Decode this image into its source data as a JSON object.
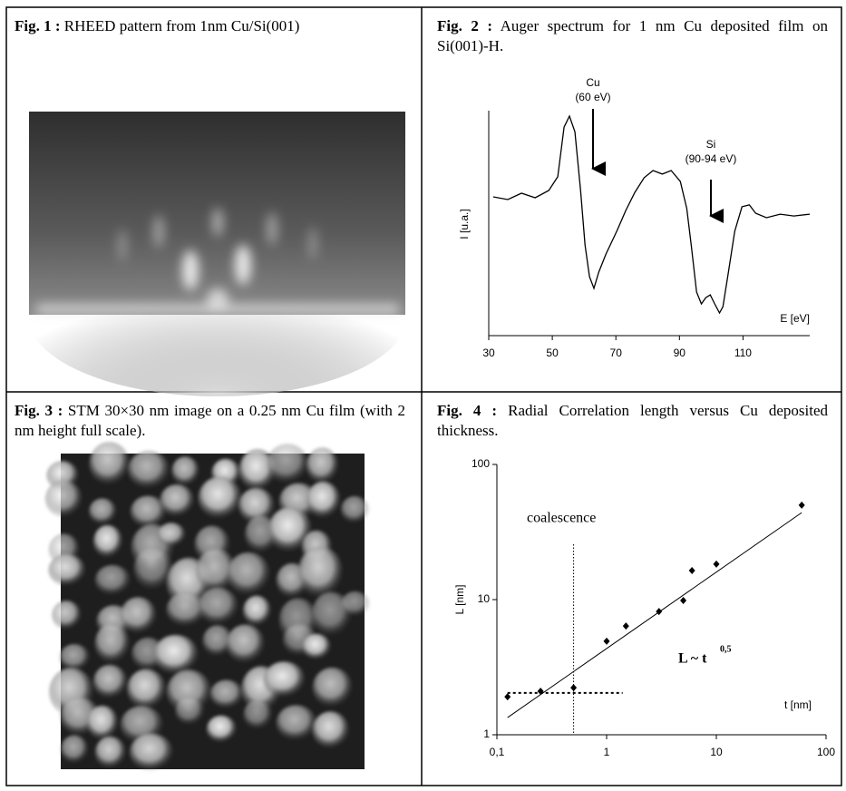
{
  "figures": [
    {
      "label": "Fig. 1 :",
      "caption": "RHEED pattern from 1nm Cu/Si(001)"
    },
    {
      "label": "Fig. 2 :",
      "caption": "Auger spectrum for 1 nm Cu deposited film on  Si(001)-H."
    },
    {
      "label": "Fig. 3 :",
      "caption": "STM 30×30 nm image on a 0.25 nm Cu film (with 2 nm height full scale)."
    },
    {
      "label": "Fig. 4 :",
      "caption": "Radial Correlation length versus Cu deposited thickness."
    }
  ],
  "chart_data": [
    {
      "type": "line",
      "x_label": "E [eV]",
      "y_label": "I [u.a.]",
      "color": "#000000",
      "annotations": [
        "Cu",
        "(60 eV)",
        "Si",
        "(90-94 eV)"
      ],
      "x": [
        31.4,
        36,
        40.3,
        44.6,
        48.9,
        51.7,
        53.7,
        55.4,
        57.1,
        58.9,
        60.3,
        61.7,
        63.1,
        64.6,
        66.9,
        70.3,
        73.1,
        76,
        78.9,
        81.7,
        84.6,
        87.4,
        90.3,
        92.3,
        93.7,
        95.4,
        96.9,
        98.3,
        99.7,
        101.1,
        102.6,
        103.7,
        105.4,
        107.4,
        109.7,
        112,
        114,
        117.4,
        121.7,
        126,
        131
      ],
      "values": [
        61.7,
        60.5,
        63.3,
        61.3,
        64.5,
        70.6,
        92.7,
        97.6,
        90.7,
        64.5,
        40.3,
        26.2,
        21,
        28.2,
        36.3,
        46.4,
        55.6,
        63.7,
        70.2,
        73.4,
        71.8,
        73.4,
        68.5,
        56.5,
        40.3,
        19.4,
        14.1,
        16.9,
        18.1,
        14.1,
        10.1,
        12.9,
        28.2,
        46.4,
        57.3,
        58.1,
        54.4,
        52.4,
        54,
        53.2,
        54
      ],
      "xlim": [
        30,
        131
      ],
      "xticks": [
        30,
        50,
        70,
        90,
        110
      ],
      "ylim": [
        0,
        100
      ]
    },
    {
      "type": "scatter",
      "x_label": "t [nm]",
      "y_label": "L [nm]",
      "color": "#000000",
      "xlog": true,
      "ylog": true,
      "annotations": [
        "coalescence",
        "L ~ t",
        "0,5"
      ],
      "x": [
        0.125,
        0.25,
        0.5,
        1,
        1.5,
        3,
        5,
        6,
        10,
        60
      ],
      "values": [
        1.91,
        2.1,
        2.23,
        4.92,
        6.38,
        8.17,
        9.84,
        16.4,
        18.3,
        50
      ],
      "fit": {
        "x": [
          0.125,
          60
        ],
        "y": [
          1.34,
          44
        ]
      },
      "guides": {
        "vline_x": 0.5,
        "hline_y": 2.04,
        "hline_x": [
          0.125,
          1.4
        ]
      },
      "xlim": [
        0.1,
        100
      ],
      "ylim": [
        1,
        100
      ],
      "xticks": [
        {
          "value": 0.1,
          "label": "0,1"
        },
        1,
        10,
        100
      ],
      "yticks": [
        1,
        10,
        100
      ]
    }
  ]
}
